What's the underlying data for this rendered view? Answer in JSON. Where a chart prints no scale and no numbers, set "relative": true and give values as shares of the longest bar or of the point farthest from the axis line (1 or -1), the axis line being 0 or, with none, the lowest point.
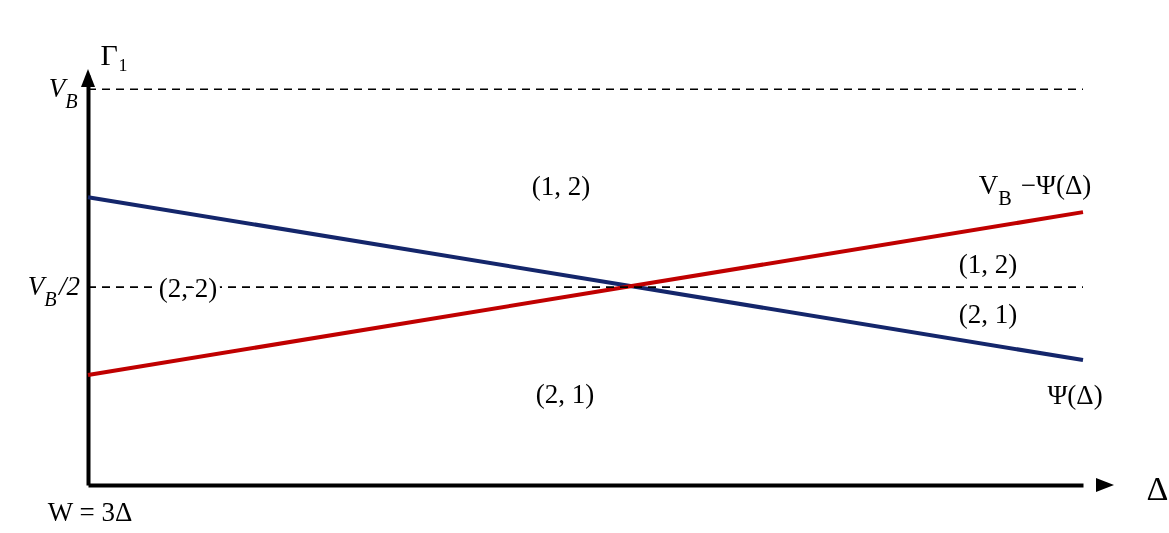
{
  "chart_data": {
    "type": "line",
    "xlabel": "Δ",
    "ylabel": "Γ₁",
    "relative": true,
    "categories": [
      null,
      null
    ],
    "series": [
      {
        "name": "Ψ(Δ)",
        "color": "#14266b",
        "values": [
          1,
          0.434
        ]
      },
      {
        "name": "V$_{B}$ −Ψ(Δ)",
        "color": "#c00000",
        "values": [
          0.382,
          0.948
        ]
      }
    ],
    "ref_lines": [
      {
        "axis": "y",
        "value": 1.375,
        "label": "V$_{B}$",
        "color": "#000000",
        "line_style": "dashed"
      },
      {
        "axis": "y",
        "value": 0.6875,
        "label": "V$_{B}$/2",
        "color": "#000000",
        "line_style": "dashed"
      }
    ],
    "annotations": [
      "(1, 2)",
      "(2, 2)",
      "(1, 2)",
      "(2, 1)",
      "(2, 1)",
      "W = 3Δ"
    ],
    "grid": false,
    "legend": false,
    "marker": "none",
    "line_style": "solid"
  }
}
